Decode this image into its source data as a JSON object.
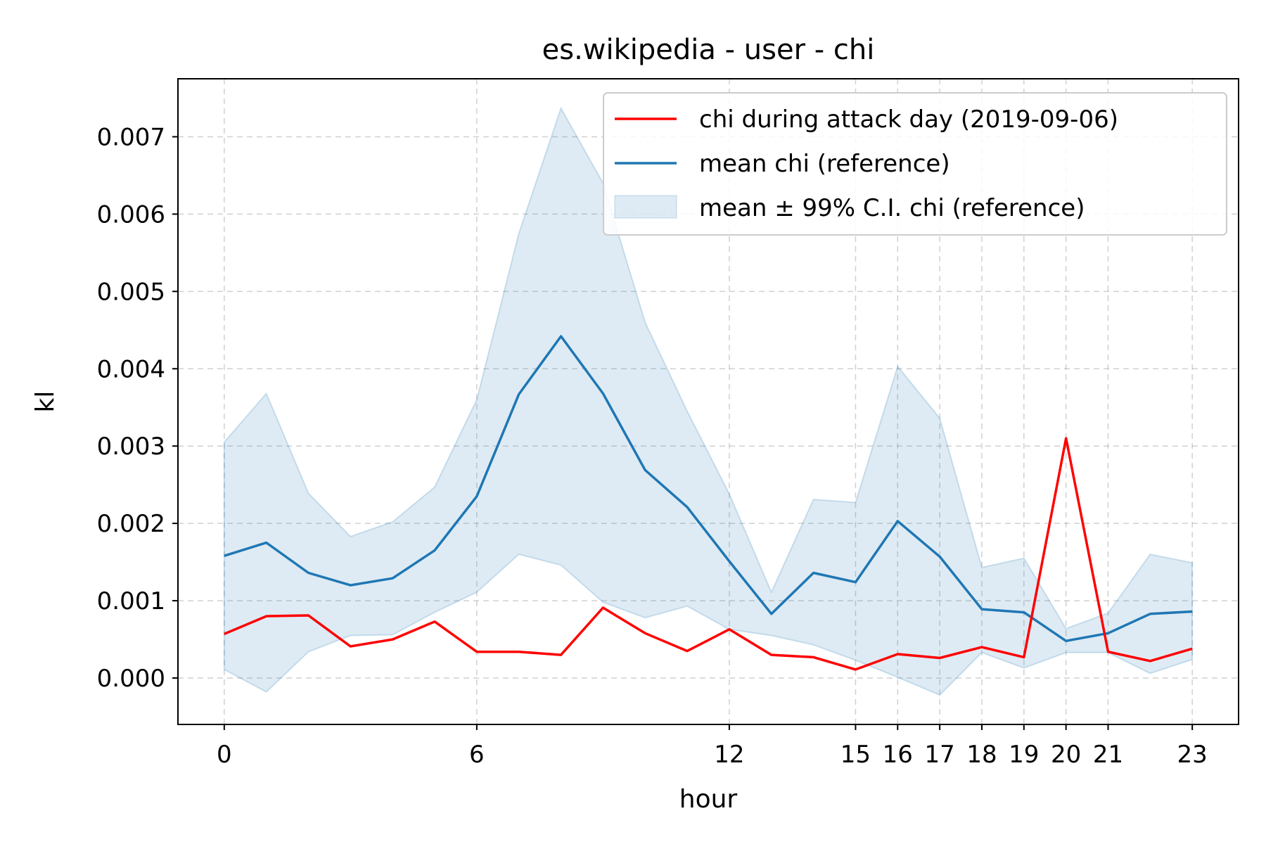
{
  "chart_data": {
    "type": "line",
    "title": "es.wikipedia - user - chi",
    "xlabel": "hour",
    "ylabel": "kl",
    "xlim": [
      -1.1,
      24.1
    ],
    "ylim": [
      -0.0006,
      0.00775
    ],
    "x_ticks": [
      0,
      6,
      12,
      15,
      16,
      17,
      18,
      19,
      20,
      21,
      23
    ],
    "y_ticks": [
      0.0,
      0.001,
      0.002,
      0.003,
      0.004,
      0.005,
      0.006,
      0.007
    ],
    "y_tick_labels": [
      "0.000",
      "0.001",
      "0.002",
      "0.003",
      "0.004",
      "0.005",
      "0.006",
      "0.007"
    ],
    "grid": true,
    "legend_position": "top-right",
    "x": [
      0,
      1,
      2,
      3,
      4,
      5,
      6,
      7,
      8,
      9,
      10,
      11,
      12,
      13,
      14,
      15,
      16,
      17,
      18,
      19,
      20,
      21,
      22,
      23
    ],
    "series": [
      {
        "name": "chi during attack day (2019-09-06)",
        "color": "#ff0000",
        "values": [
          0.00057,
          0.0008,
          0.00081,
          0.00041,
          0.0005,
          0.00073,
          0.00034,
          0.00034,
          0.0003,
          0.00091,
          0.00058,
          0.00035,
          0.00063,
          0.0003,
          0.00027,
          0.00011,
          0.00031,
          0.00026,
          0.0004,
          0.00027,
          0.0031,
          0.00034,
          0.00022,
          0.00038
        ]
      },
      {
        "name": "mean chi (reference)",
        "color": "#1f77b4",
        "values": [
          0.00158,
          0.00175,
          0.00136,
          0.0012,
          0.00129,
          0.00165,
          0.00235,
          0.00367,
          0.00442,
          0.00368,
          0.00269,
          0.00221,
          0.00151,
          0.00083,
          0.00136,
          0.00124,
          0.00203,
          0.00157,
          0.00089,
          0.00085,
          0.00048,
          0.00058,
          0.00083,
          0.00086
        ]
      }
    ],
    "band": {
      "name": "mean ± 99% C.I. chi (reference)",
      "color": "#1f77b4",
      "lower": [
        0.00011,
        -0.00018,
        0.00034,
        0.00055,
        0.00056,
        0.00085,
        0.00111,
        0.0016,
        0.00146,
        0.00098,
        0.00078,
        0.00093,
        0.00063,
        0.00055,
        0.00043,
        0.00023,
        1e-05,
        -0.00022,
        0.00033,
        0.00013,
        0.00033,
        0.00033,
        6e-05,
        0.00024
      ],
      "upper": [
        0.00305,
        0.00368,
        0.00239,
        0.00183,
        0.00202,
        0.00247,
        0.0036,
        0.00575,
        0.00737,
        0.0064,
        0.0046,
        0.00345,
        0.00238,
        0.00111,
        0.00231,
        0.00227,
        0.00403,
        0.00336,
        0.00143,
        0.00155,
        0.00064,
        0.00084,
        0.0016,
        0.00149
      ]
    }
  }
}
